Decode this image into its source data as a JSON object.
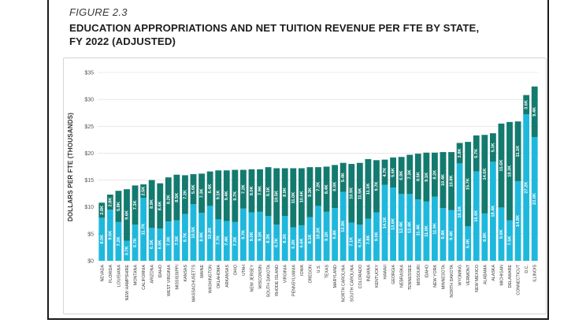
{
  "figure": {
    "label": "FIGURE 2.3",
    "title_line1": "EDUCATION APPROPRIATIONS AND NET TUITION REVENUE PER FTE BY STATE,",
    "title_line2": "FY 2022 (ADJUSTED)"
  },
  "chart_data": {
    "type": "bar",
    "stacked": true,
    "title": "EDUCATION APPROPRIATIONS AND NET TUITION REVENUE PER FTE BY STATE, FY 2022 (ADJUSTED)",
    "xlabel": "",
    "ylabel": "DOLLARS PER FTE (THOUSANDS)",
    "ylim": [
      0,
      35
    ],
    "yticks": [
      0,
      5,
      10,
      15,
      20,
      25,
      30,
      35
    ],
    "ytick_labels": [
      "$0",
      "$5",
      "$10",
      "$15",
      "$20",
      "$25",
      "$30",
      "$35"
    ],
    "grid": true,
    "colors": {
      "bottom": "#1fb8dd",
      "top": "#137a6f"
    },
    "categories": [
      "NEVADA",
      "FLORIDA",
      "LOUISIANA",
      "NEW HAMPSHIRE",
      "MONTANA",
      "CALIFORNIA",
      "ARIZONA",
      "IDAHO",
      "WEST VIRGINIA",
      "MISSISSIPPI",
      "KANSAS",
      "MASSACHUSETTS",
      "MAINE",
      "WASHINGTON",
      "OKLAHOMA",
      "ARKANSAS",
      "OHIO",
      "UTAH",
      "NEW JERSEY",
      "WISCONSIN",
      "SOUTH DAKOTA",
      "RHODE ISLAND",
      "VIRGINIA",
      "PENNSYLVANIA",
      "IOWA",
      "OREGON",
      "U.S.",
      "TEXAS",
      "MARYLAND",
      "NORTH CAROLINA",
      "SOUTH CAROLINA",
      "COLORADO",
      "INDIANA",
      "KENTUCKY",
      "HAWAII",
      "GEORGIA",
      "NEBRASKA",
      "TENNESSEE",
      "MISSOURI",
      "IDAHO",
      "NEW YORK",
      "MINNESOTA",
      "NORTH DAKOTA",
      "WYOMING",
      "VERMONT",
      "NEW MEXICO",
      "ALABAMA",
      "ALASKA",
      "MICHIGAN",
      "DELAWARE",
      "CONNECTICUT",
      "D.C.",
      "ILLINOIS"
    ],
    "series": [
      {
        "name": "Education appropriations",
        "color": "#1fb8dd",
        "values": [
          8.0,
          9.5,
          7.2,
          3.7,
          6.7,
          11.7,
          6.1,
          6.0,
          7.3,
          7.5,
          8.7,
          10.5,
          8.9,
          10.2,
          7.7,
          7.4,
          7.2,
          9.7,
          9.0,
          9.1,
          8.3,
          6.7,
          8.3,
          6.2,
          6.6,
          8.1,
          10.2,
          9.1,
          9.8,
          12.8,
          7.1,
          6.7,
          7.8,
          9.0,
          14.1,
          13.6,
          12.4,
          12.4,
          11.4,
          11.0,
          11.9,
          9.8,
          9.4,
          18.1,
          6.4,
          16.6,
          8.8,
          18.4,
          9.9,
          7.5,
          14.8,
          27.2,
          23.0
        ],
        "labels": [
          "8.0K",
          "9.5K",
          "7.2K",
          "3.7K",
          "6.7K",
          "11.7K",
          "6.1K",
          "6.0K",
          "7.3K",
          "7.5K",
          "8.7K",
          "10.5K",
          "8.9K",
          "10.2K",
          "7.7K",
          "7.4K",
          "7.2K",
          "9.7K",
          "9.0K",
          "9.1K",
          "8.3K",
          "6.7K",
          "8.3K",
          "6.2K",
          "6.6K",
          "8.1K",
          "10.2K",
          "9.1K",
          "9.8K",
          "12.8K",
          "7.1K",
          "6.7K",
          "7.8K",
          "9.0K",
          "14.1K",
          "13.6K",
          "12.4K",
          "12.4K",
          "11.4K",
          "11.0K",
          "11.9K",
          "9.8K",
          "9.4K",
          "18.1K",
          "6.4K",
          "16.6K",
          "8.8K",
          "18.4K",
          "9.9K",
          "7.5K",
          "14.8K",
          "27.2K",
          "23.0K"
        ]
      },
      {
        "name": "Net tuition revenue",
        "color": "#137a6f",
        "values": [
          2.8,
          2.8,
          5.8,
          9.6,
          7.3,
          2.5,
          8.9,
          8.4,
          8.2,
          8.5,
          7.2,
          5.6,
          7.3,
          6.4,
          9.1,
          9.4,
          9.7,
          7.2,
          8.0,
          7.9,
          9.1,
          10.5,
          8.9,
          11.0,
          10.6,
          9.3,
          7.2,
          8.4,
          8.0,
          5.4,
          10.9,
          11.5,
          11.1,
          9.7,
          4.7,
          5.6,
          6.9,
          7.3,
          8.5,
          9.1,
          8.2,
          10.4,
          10.8,
          3.8,
          15.7,
          6.7,
          14.6,
          5.3,
          15.6,
          18.3,
          11.1,
          3.6,
          9.4
        ],
        "labels": [
          "2.8K",
          "2.8K",
          "5.8K",
          "9.6K",
          "7.3K",
          "2.5K",
          "8.9K",
          "8.4K",
          "8.2K",
          "8.5K",
          "7.2K",
          "5.6K",
          "7.3K",
          "6.4K",
          "9.1K",
          "9.4K",
          "9.7K",
          "7.2K",
          "8.0K",
          "7.9K",
          "9.1K",
          "10.5K",
          "8.9K",
          "11.0K",
          "10.6K",
          "9.3K",
          "7.2K",
          "8.4K",
          "8.0K",
          "5.4K",
          "10.9K",
          "11.5K",
          "11.1K",
          "9.7K",
          "4.7K",
          "5.6K",
          "6.9K",
          "7.3K",
          "8.5K",
          "9.1K",
          "8.2K",
          "10.4K",
          "10.8K",
          "3.8K",
          "15.7K",
          "6.7K",
          "14.6K",
          "5.3K",
          "15.6K",
          "18.3K",
          "11.1K",
          "3.6K",
          "9.4K"
        ]
      }
    ]
  }
}
